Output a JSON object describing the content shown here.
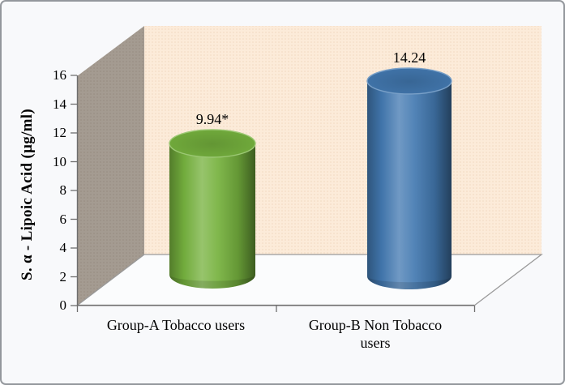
{
  "figure": {
    "background": "#f8f9fb",
    "border_color": "#94989d"
  },
  "chart_data": {
    "type": "bar",
    "subtype": "3d-cylinder",
    "title": "",
    "xlabel": "",
    "ylabel": "S. α - Lipoic Acid (µg/ml)",
    "categories": [
      "Group-A Tobacco users",
      "Group-B Non Tobacco users"
    ],
    "category_display": [
      "Group-A Tobacco users",
      "Group-B  Non Tobacco\nusers"
    ],
    "values": [
      9.94,
      14.24
    ],
    "data_labels": [
      "9.94*",
      "14.24"
    ],
    "bar_colors": [
      "#76b23e",
      "#4379b1"
    ],
    "ylim": [
      0,
      16
    ],
    "ytick_interval": 2,
    "yticks": [
      0,
      2,
      4,
      6,
      8,
      10,
      12,
      14,
      16
    ],
    "grid": false,
    "legend": "none",
    "walls": {
      "back_wall": "#fcebd9",
      "back_wall_dots": "#f1d8be",
      "side_wall": "#a49b91",
      "side_wall_dots": "#968b7f",
      "floor": "#fbfcfd",
      "edge_line": "#9a9a9a",
      "axis_line": "#6e6e6e"
    }
  }
}
